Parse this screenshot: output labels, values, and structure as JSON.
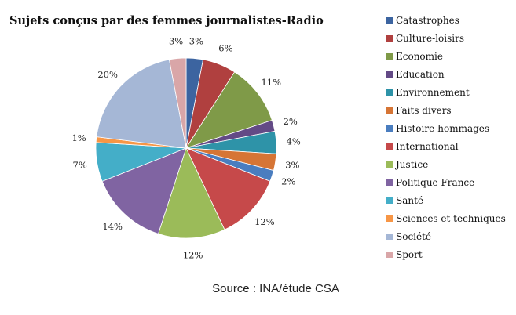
{
  "chart_data": {
    "type": "pie",
    "title": "Sujets conçus par des femmes journalistes-Radio",
    "source": "Source : INA/étude CSA",
    "legend_position": "right",
    "start": "top, clockwise",
    "categories": [
      "Catastrophes",
      "Culture-loisirs",
      "Economie",
      "Education",
      "Environnement",
      "Faits divers",
      "Histoire-hommages",
      "International",
      "Justice",
      "Politique France",
      "Santé",
      "Sciences et techniques",
      "Société",
      "Sport"
    ],
    "values": [
      3,
      6,
      11,
      2,
      4,
      3,
      2,
      12,
      12,
      14,
      7,
      1,
      20,
      3
    ],
    "labels": [
      "3%",
      "6%",
      "11%",
      "2%",
      "4%",
      "3%",
      "2%",
      "12%",
      "12%",
      "14%",
      "7%",
      "1%",
      "20%",
      "3%"
    ],
    "colors": [
      "#3c64a0",
      "#b0403f",
      "#7f9a48",
      "#634a86",
      "#2e93a8",
      "#d67535",
      "#4a7dbf",
      "#c6494a",
      "#9bbb59",
      "#8064a2",
      "#44aec8",
      "#f79646",
      "#a5b7d6",
      "#d9a6a8"
    ]
  }
}
